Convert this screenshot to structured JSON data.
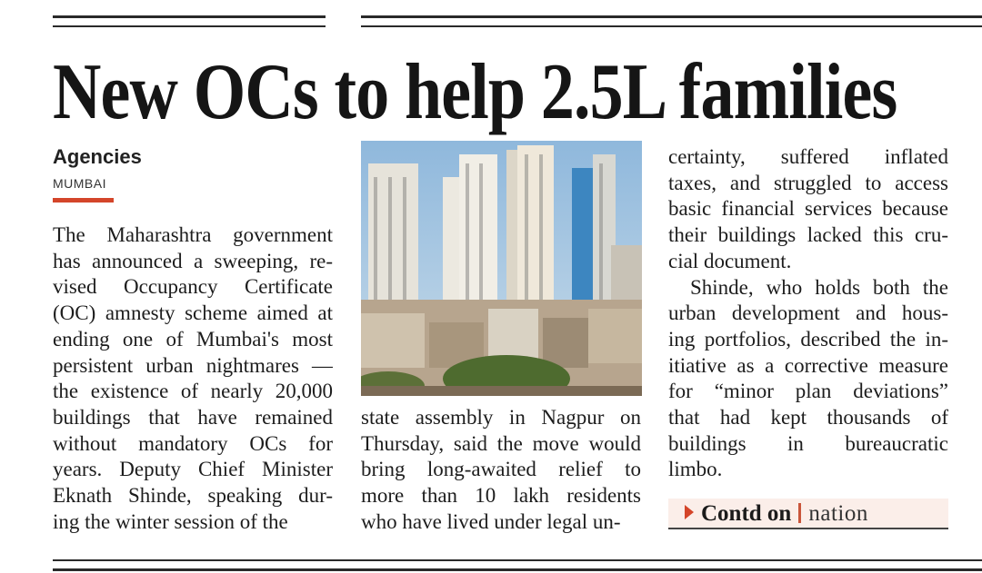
{
  "headline": "New OCs to help 2.5L families",
  "byline": "Agencies",
  "dateline": "MUMBAI",
  "columns": {
    "col1": [
      "The Maharashtra government",
      "has announced a sweeping, re-",
      "vised Occupancy Certificate",
      "(OC) amnesty scheme aimed at",
      "ending one of Mumbai's most",
      "persistent urban nightmares —",
      "the existence of nearly 20,000",
      "buildings that have remained",
      "without mandatory OCs for",
      "years. Deputy Chief Minister",
      "Eknath Shinde, speaking dur-",
      "ing the winter session of the"
    ],
    "col2": [
      "state assembly in Nagpur on",
      "Thursday, said the move would",
      "bring long-awaited relief to",
      "more than 10 lakh residents",
      "who have lived under legal un-"
    ],
    "col3": [
      "certainty, suffered inflated",
      "taxes, and struggled to access",
      "basic financial services because",
      "their buildings lacked this cru-",
      "cial document.",
      "Shinde, who holds both the",
      "urban development and hous-",
      "ing portfolios, described the in-",
      "itiative as a corrective measure",
      "for “minor plan deviations”",
      "that had kept thousands of",
      "buildings in bureaucratic",
      "limbo."
    ]
  },
  "continued": {
    "icon": "play-triangle-icon",
    "label": "Contd on",
    "section": "nation"
  },
  "colors": {
    "accent": "#d4452a",
    "text": "#1d1d1d",
    "contd_bg": "#fbeee9"
  }
}
